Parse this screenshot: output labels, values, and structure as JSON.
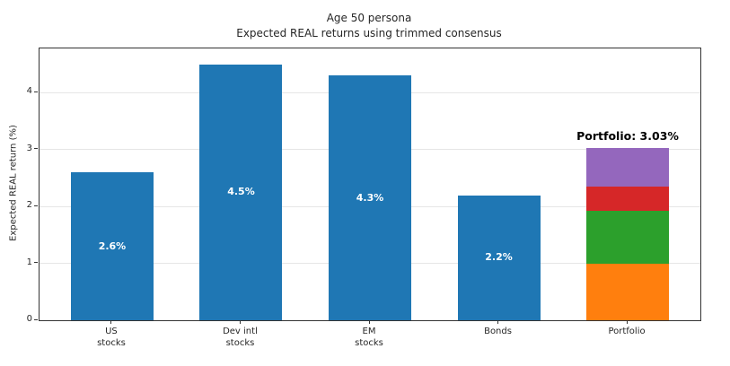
{
  "figure": {
    "background": "#ffffff"
  },
  "chart_data": {
    "type": "bar",
    "title": "Age 50 persona\nExpected REAL returns using trimmed consensus",
    "title_lines": [
      "Age 50 persona",
      "Expected REAL returns using trimmed consensus"
    ],
    "ylabel": "Expected REAL return (%)",
    "xlabel": "",
    "ylim": [
      0,
      4.78
    ],
    "yticks": [
      0,
      1,
      2,
      3,
      4
    ],
    "grid": "horizontal",
    "legend": "none",
    "categories": [
      "US\nstocks",
      "Dev intl\nstocks",
      "EM\nstocks",
      "Bonds",
      "Portfolio"
    ],
    "bars": [
      {
        "category": "US\nstocks",
        "value": 2.6,
        "label": "2.6%",
        "color": "#1f77b4"
      },
      {
        "category": "Dev intl\nstocks",
        "value": 4.5,
        "label": "4.5%",
        "color": "#1f77b4"
      },
      {
        "category": "EM\nstocks",
        "value": 4.3,
        "label": "4.3%",
        "color": "#1f77b4"
      },
      {
        "category": "Bonds",
        "value": 2.2,
        "label": "2.2%",
        "color": "#1f77b4"
      },
      {
        "category": "Portfolio",
        "stacked": true,
        "total": 3.03,
        "annotation": "Portfolio: 3.03%",
        "segments": [
          {
            "name": "portfolio-segment-1",
            "value": 0.99,
            "color": "#ff7f0e"
          },
          {
            "name": "portfolio-segment-2",
            "value": 0.94,
            "color": "#2ca02c"
          },
          {
            "name": "portfolio-segment-3",
            "value": 0.42,
            "color": "#d62728"
          },
          {
            "name": "portfolio-segment-4",
            "value": 0.68,
            "color": "#9467bd"
          }
        ]
      }
    ],
    "colors": {
      "bar_blue": "#1f77b4",
      "segment_orange": "#ff7f0e",
      "segment_green": "#2ca02c",
      "segment_red": "#d62728",
      "segment_purple": "#9467bd",
      "grid": "#e6e6e6",
      "spine": "#333333",
      "bar_label_text": "#ffffff",
      "annotation_text": "#000000",
      "tick_text": "#262626"
    }
  }
}
